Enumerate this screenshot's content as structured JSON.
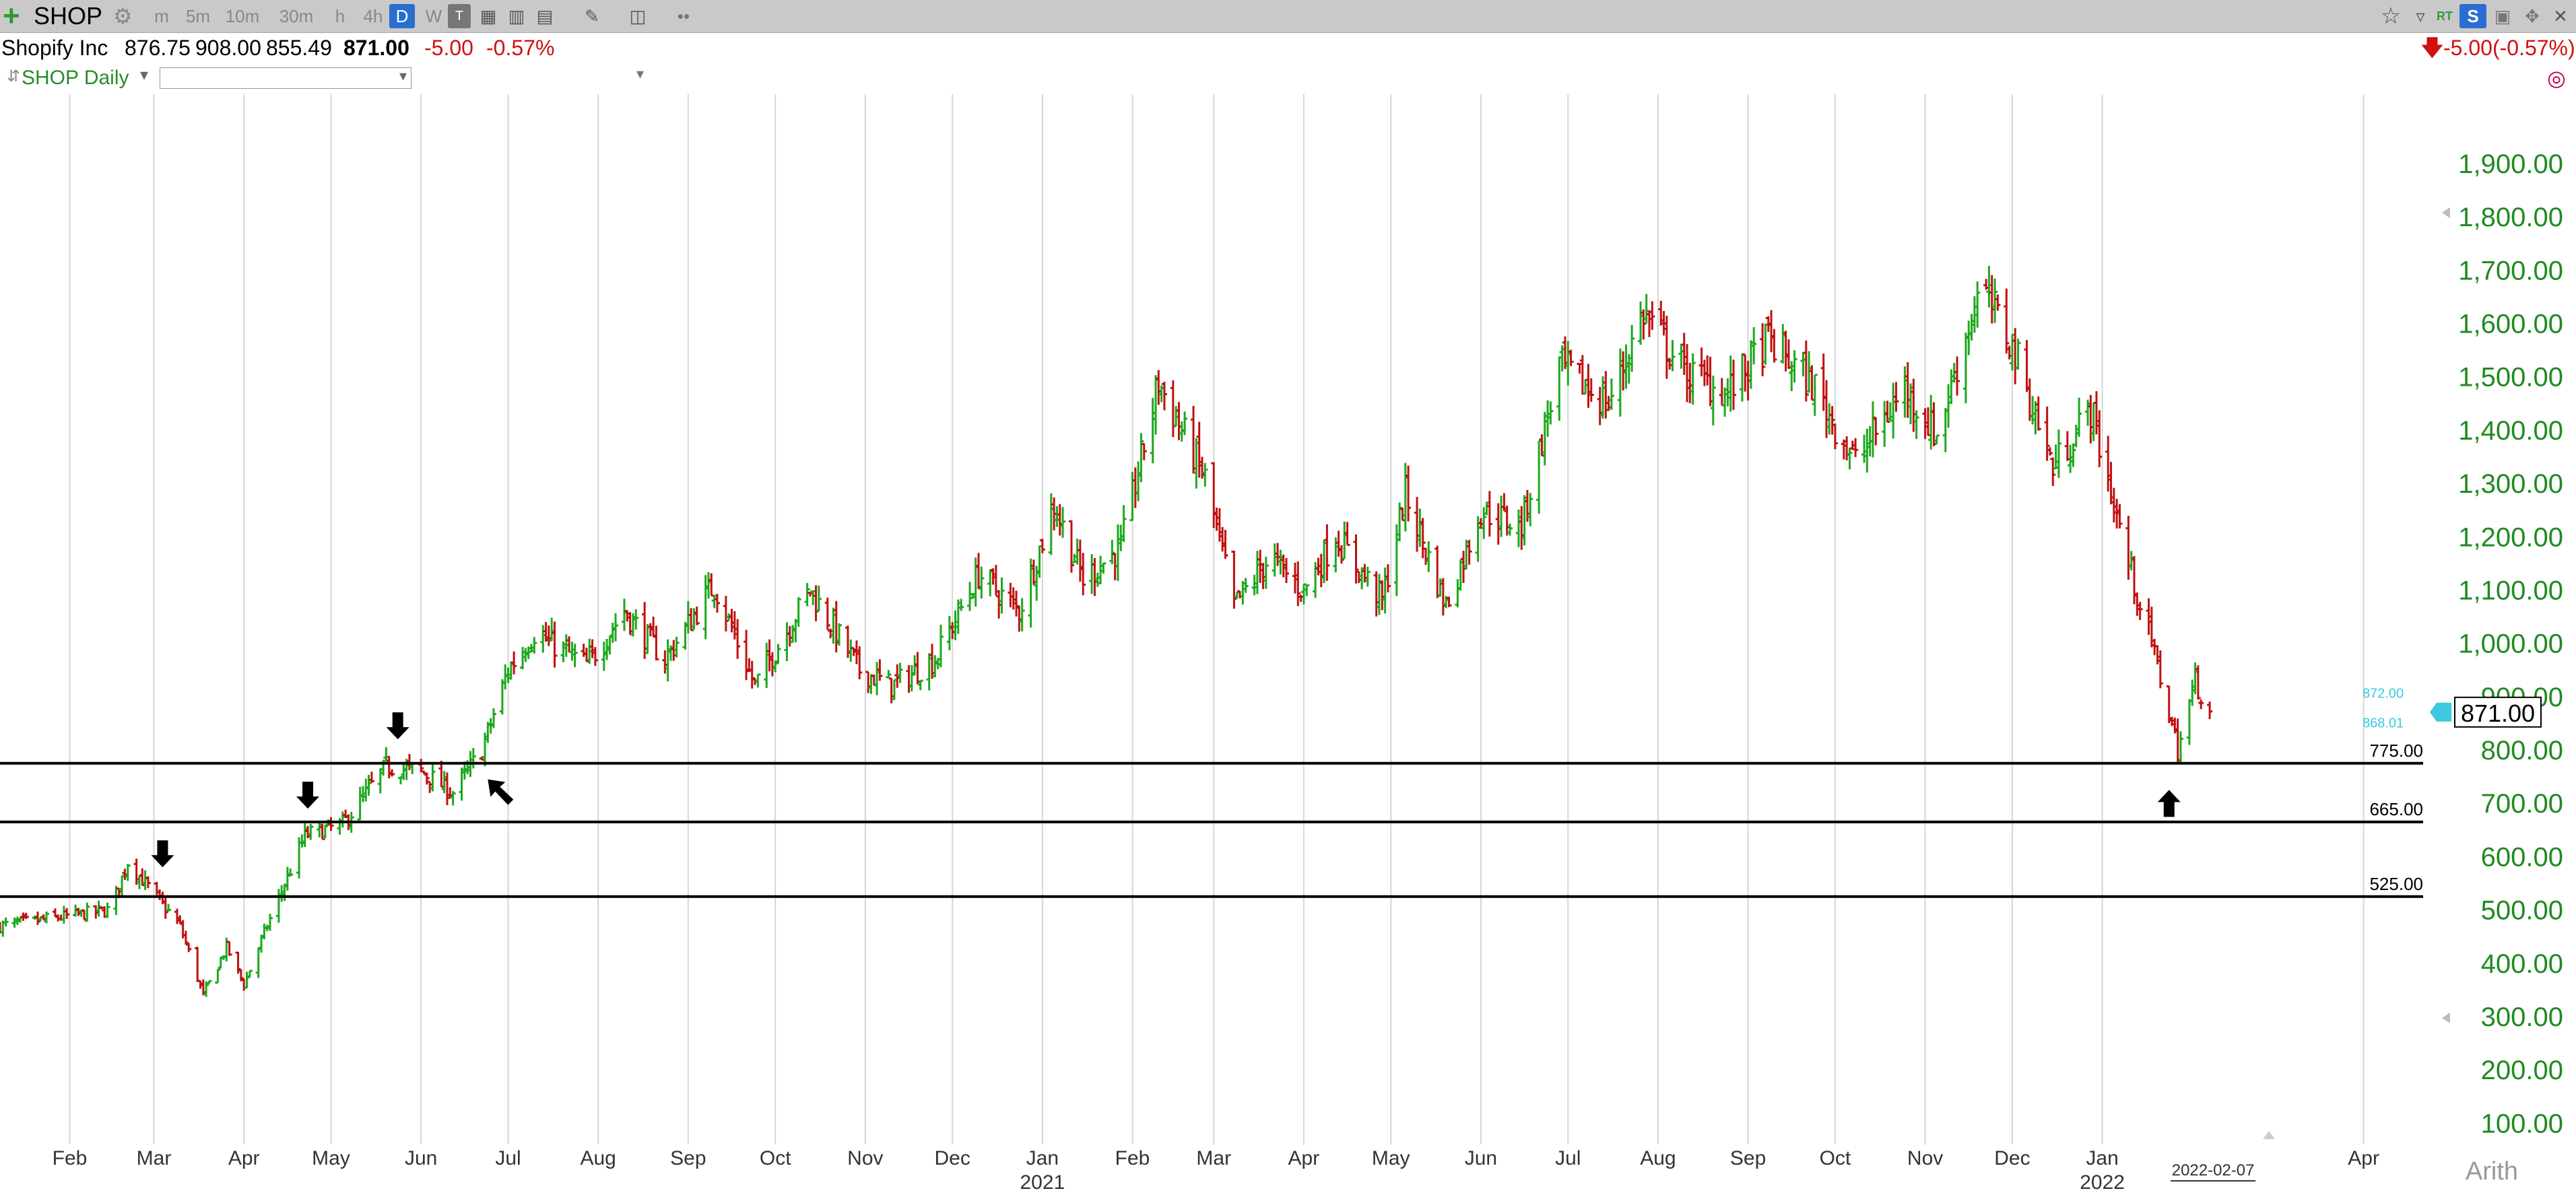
{
  "toolbar": {
    "symbol": "SHOP",
    "intervals": [
      "m",
      "5m",
      "10m",
      "30m",
      "h",
      "4h",
      "D",
      "W"
    ],
    "active_interval": "D",
    "rt_label": "RT",
    "s_label": "S"
  },
  "info": {
    "name": "Shopify Inc",
    "open": "876.75",
    "high": "908.00",
    "low": "855.49",
    "close": "871.00",
    "change": "-5.00",
    "change_pct": "-0.57%",
    "right_change": "-5.00(-0.57%)"
  },
  "subbar": {
    "title": "SHOP Daily"
  },
  "chart_data": {
    "type": "ohlc",
    "title": "SHOP Daily",
    "x_tick_labels": [
      "Feb",
      "Mar",
      "Apr",
      "May",
      "Jun",
      "Jul",
      "Aug",
      "Sep",
      "Oct",
      "Nov",
      "Dec",
      "Jan",
      "Feb",
      "Mar",
      "Apr",
      "May",
      "Jun",
      "Jul",
      "Aug",
      "Sep",
      "Oct",
      "Nov",
      "Dec",
      "Jan",
      "Apr"
    ],
    "x_tick_dates": [
      "2020-02-01",
      "2020-03-01",
      "2020-04-01",
      "2020-05-01",
      "2020-06-01",
      "2020-07-01",
      "2020-08-01",
      "2020-09-01",
      "2020-10-01",
      "2020-11-01",
      "2020-12-01",
      "2021-01-01",
      "2021-02-01",
      "2021-03-01",
      "2021-04-01",
      "2021-05-01",
      "2021-06-01",
      "2021-07-01",
      "2021-08-01",
      "2021-09-01",
      "2021-10-01",
      "2021-11-01",
      "2021-12-01",
      "2022-01-01",
      "2022-04-01"
    ],
    "year_labels": [
      {
        "date": "2021-01-01",
        "label": "2021"
      },
      {
        "date": "2022-01-01",
        "label": "2022"
      }
    ],
    "date_marker": "2022-02-07",
    "x_range": [
      "2020-01-08",
      "2022-04-15"
    ],
    "y_ticks": [
      "100.00",
      "200.00",
      "300.00",
      "400.00",
      "500.00",
      "600.00",
      "700.00",
      "800.00",
      "900.00",
      "1,000.00",
      "1,100.00",
      "1,200.00",
      "1,300.00",
      "1,400.00",
      "1,500.00",
      "1,600.00",
      "1,700.00",
      "1,800.00",
      "1,900.00"
    ],
    "ylim": [
      60,
      2030
    ],
    "scale_mode": "Arith",
    "last_price": "871.00",
    "last_price_value": 871,
    "price_hi_label": "872.00",
    "price_lo_label": "868.01",
    "grid": "vertical",
    "up_color": "#1ea81e",
    "down_color": "#c01010",
    "support_lines": [
      {
        "value": 775,
        "label": "775.00"
      },
      {
        "value": 665,
        "label": "665.00"
      },
      {
        "value": 525,
        "label": "525.00"
      }
    ],
    "arrows": [
      {
        "date": "2020-03-04",
        "value": 580,
        "dir": "down"
      },
      {
        "date": "2020-04-23",
        "value": 690,
        "dir": "down"
      },
      {
        "date": "2020-05-24",
        "value": 820,
        "dir": "down"
      },
      {
        "date": "2020-06-24",
        "value": 745,
        "dir": "up-left"
      },
      {
        "date": "2022-01-24",
        "value": 725,
        "dir": "up"
      }
    ],
    "price_path": [
      [
        "2020-01-08",
        470
      ],
      [
        "2020-02-15",
        500
      ],
      [
        "2020-02-21",
        590
      ],
      [
        "2020-03-01",
        530
      ],
      [
        "2020-03-10",
        470
      ],
      [
        "2020-03-18",
        340
      ],
      [
        "2020-03-26",
        430
      ],
      [
        "2020-04-01",
        360
      ],
      [
        "2020-04-09",
        470
      ],
      [
        "2020-04-22",
        640
      ],
      [
        "2020-05-05",
        660
      ],
      [
        "2020-05-20",
        770
      ],
      [
        "2020-06-01",
        760
      ],
      [
        "2020-06-12",
        720
      ],
      [
        "2020-06-22",
        800
      ],
      [
        "2020-07-01",
        950
      ],
      [
        "2020-07-10",
        1020
      ],
      [
        "2020-07-28",
        960
      ],
      [
        "2020-08-10",
        1060
      ],
      [
        "2020-08-24",
        970
      ],
      [
        "2020-09-10",
        1110
      ],
      [
        "2020-09-24",
        920
      ],
      [
        "2020-10-13",
        1100
      ],
      [
        "2020-10-30",
        950
      ],
      [
        "2020-11-10",
        920
      ],
      [
        "2020-11-25",
        970
      ],
      [
        "2020-12-10",
        1130
      ],
      [
        "2020-12-24",
        1060
      ],
      [
        "2021-01-05",
        1260
      ],
      [
        "2021-01-15",
        1120
      ],
      [
        "2021-01-28",
        1180
      ],
      [
        "2021-02-10",
        1490
      ],
      [
        "2021-02-26",
        1310
      ],
      [
        "2021-03-08",
        1070
      ],
      [
        "2021-03-20",
        1160
      ],
      [
        "2021-04-01",
        1100
      ],
      [
        "2021-04-12",
        1200
      ],
      [
        "2021-04-28",
        1080
      ],
      [
        "2021-05-06",
        1280
      ],
      [
        "2021-05-20",
        1070
      ],
      [
        "2021-06-01",
        1250
      ],
      [
        "2021-06-15",
        1220
      ],
      [
        "2021-06-28",
        1520
      ],
      [
        "2021-07-15",
        1450
      ],
      [
        "2021-07-27",
        1620
      ],
      [
        "2021-08-10",
        1510
      ],
      [
        "2021-08-25",
        1470
      ],
      [
        "2021-09-08",
        1570
      ],
      [
        "2021-09-24",
        1480
      ],
      [
        "2021-10-08",
        1340
      ],
      [
        "2021-10-25",
        1480
      ],
      [
        "2021-11-05",
        1390
      ],
      [
        "2021-11-20",
        1670
      ],
      [
        "2021-12-01",
        1560
      ],
      [
        "2021-12-15",
        1330
      ],
      [
        "2021-12-28",
        1440
      ],
      [
        "2022-01-10",
        1150
      ],
      [
        "2022-01-20",
        960
      ],
      [
        "2022-01-27",
        800
      ],
      [
        "2022-02-02",
        930
      ],
      [
        "2022-02-07",
        871
      ]
    ]
  }
}
